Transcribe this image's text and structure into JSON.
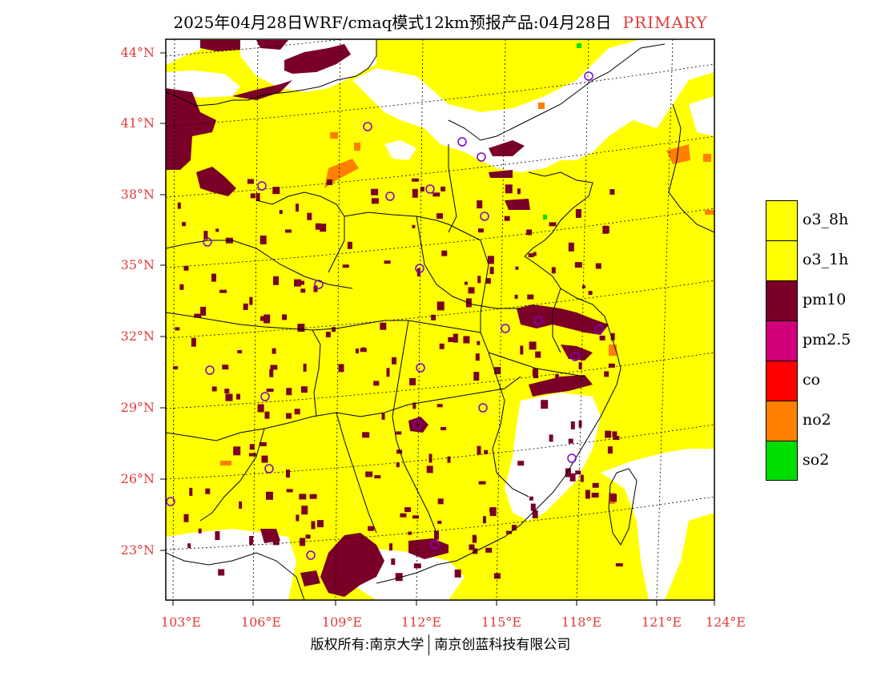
{
  "title": {
    "main": "2025年04月28日WRF/cmaq模式12km预报产品:04月28日",
    "tag": "PRIMARY"
  },
  "axes": {
    "lat_labels": [
      "44°N",
      "41°N",
      "38°N",
      "35°N",
      "32°N",
      "29°N",
      "26°N",
      "23°N"
    ],
    "lon_labels": [
      "103°E",
      "106°E",
      "109°E",
      "112°E",
      "115°E",
      "118°E",
      "121°E",
      "124°E"
    ]
  },
  "legend": [
    {
      "label": "o3_8h",
      "color": "#ffff00"
    },
    {
      "label": "o3_1h",
      "color": "#ffff00"
    },
    {
      "label": "pm10",
      "color": "#7a0028"
    },
    {
      "label": "pm2.5",
      "color": "#d0007a"
    },
    {
      "label": "co",
      "color": "#ff0000"
    },
    {
      "label": "no2",
      "color": "#ff7f00"
    },
    {
      "label": "so2",
      "color": "#00dd00"
    }
  ],
  "footer": {
    "left": "版权所有:南京大学",
    "right": "南京创蓝科技有限公司"
  }
}
